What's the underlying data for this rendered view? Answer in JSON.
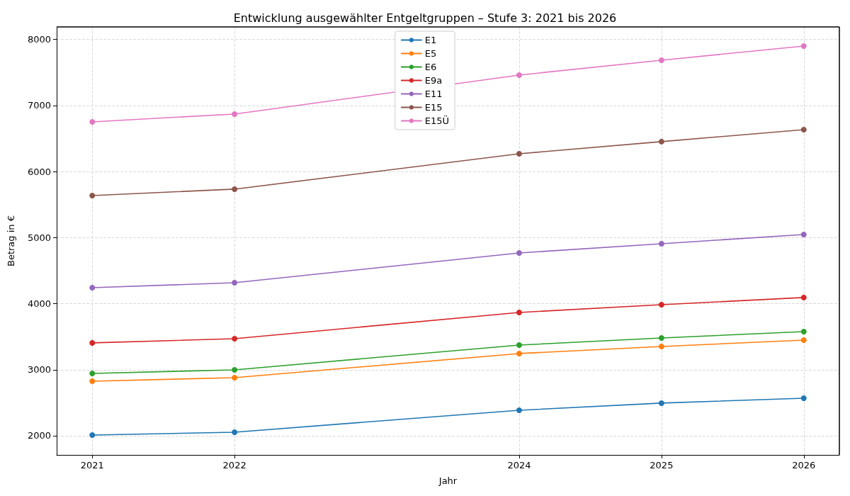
{
  "chart_data": {
    "type": "line",
    "title": "Entwicklung ausgewählter Entgeltgruppen – Stufe 3: 2021 bis 2026",
    "xlabel": "Jahr",
    "ylabel": "Betrag in €",
    "x": [
      2021,
      2022,
      2024,
      2025,
      2026
    ],
    "series": [
      {
        "name": "E1",
        "color": "#1f77b4",
        "values": [
          2011,
          2054,
          2386,
          2494,
          2569
        ]
      },
      {
        "name": "E5",
        "color": "#ff7f0e",
        "values": [
          2826,
          2880,
          3245,
          3352,
          3448
        ]
      },
      {
        "name": "E6",
        "color": "#2ca02c",
        "values": [
          2944,
          2998,
          3373,
          3481,
          3577
        ]
      },
      {
        "name": "E9a",
        "color": "#d62728",
        "values": [
          3406,
          3470,
          3867,
          3985,
          4093
        ]
      },
      {
        "name": "E11",
        "color": "#9467bd",
        "values": [
          4242,
          4317,
          4768,
          4907,
          5047
        ]
      },
      {
        "name": "E15",
        "color": "#8c564b",
        "values": [
          5637,
          5734,
          6270,
          6453,
          6635
        ]
      },
      {
        "name": "E15Ü",
        "color": "#e377c2",
        "values": [
          6753,
          6871,
          7461,
          7686,
          7901
        ]
      }
    ],
    "xlim": [
      2020.75,
      2026.25
    ],
    "xticks": [
      2021,
      2022,
      2024,
      2025,
      2026
    ],
    "ylim": [
      1710,
      8190
    ],
    "yticks": [
      2000,
      3000,
      4000,
      5000,
      6000,
      7000,
      8000
    ],
    "grid": true,
    "legend": "top",
    "marker": "circle",
    "line_style": "solid"
  }
}
